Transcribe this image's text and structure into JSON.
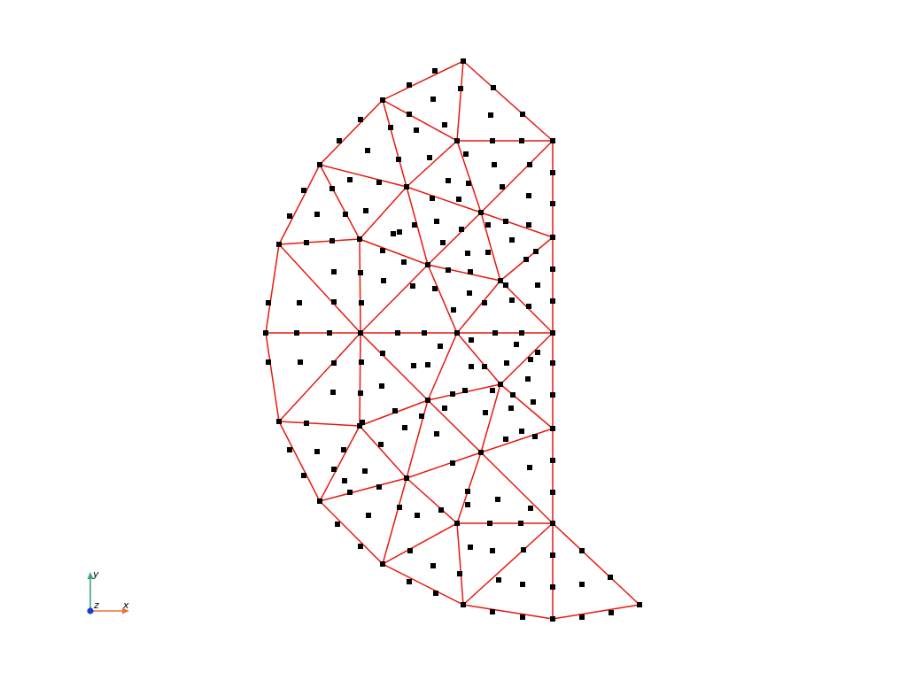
{
  "mesh": {
    "edge_color": "#e8190f",
    "node_color": "#000000",
    "vertices": [
      [
        523,
        69
      ],
      [
        432,
        113
      ],
      [
        361,
        186
      ],
      [
        315,
        276
      ],
      [
        300,
        376
      ],
      [
        315,
        476
      ],
      [
        361,
        566
      ],
      [
        432,
        637
      ],
      [
        523,
        683
      ],
      [
        624,
        699
      ],
      [
        722,
        683
      ],
      [
        516,
        159
      ],
      [
        624,
        159
      ],
      [
        459,
        211
      ],
      [
        543,
        240
      ],
      [
        406,
        270
      ],
      [
        624,
        268
      ],
      [
        483,
        299
      ],
      [
        565,
        317
      ],
      [
        407,
        376
      ],
      [
        516,
        376
      ],
      [
        624,
        376
      ],
      [
        483,
        452
      ],
      [
        565,
        434
      ],
      [
        406,
        481
      ],
      [
        624,
        484
      ],
      [
        543,
        511
      ],
      [
        459,
        540
      ],
      [
        516,
        591
      ],
      [
        624,
        591
      ]
    ],
    "edges": [
      [
        0,
        1
      ],
      [
        1,
        2
      ],
      [
        2,
        3
      ],
      [
        3,
        4
      ],
      [
        4,
        5
      ],
      [
        5,
        6
      ],
      [
        6,
        7
      ],
      [
        7,
        8
      ],
      [
        8,
        9
      ],
      [
        9,
        10
      ],
      [
        0,
        12
      ],
      [
        12,
        16
      ],
      [
        16,
        21
      ],
      [
        21,
        25
      ],
      [
        25,
        29
      ],
      [
        29,
        9
      ],
      [
        29,
        10
      ],
      [
        0,
        11
      ],
      [
        1,
        11
      ],
      [
        11,
        12
      ],
      [
        1,
        13
      ],
      [
        11,
        13
      ],
      [
        11,
        14
      ],
      [
        12,
        14
      ],
      [
        2,
        13
      ],
      [
        2,
        15
      ],
      [
        13,
        15
      ],
      [
        13,
        14
      ],
      [
        13,
        17
      ],
      [
        14,
        16
      ],
      [
        14,
        17
      ],
      [
        14,
        18
      ],
      [
        16,
        18
      ],
      [
        3,
        15
      ],
      [
        15,
        17
      ],
      [
        15,
        19
      ],
      [
        17,
        18
      ],
      [
        17,
        19
      ],
      [
        17,
        20
      ],
      [
        18,
        20
      ],
      [
        18,
        21
      ],
      [
        3,
        19
      ],
      [
        4,
        19
      ],
      [
        19,
        20
      ],
      [
        20,
        21
      ],
      [
        5,
        19
      ],
      [
        19,
        22
      ],
      [
        19,
        24
      ],
      [
        5,
        24
      ],
      [
        20,
        22
      ],
      [
        20,
        23
      ],
      [
        21,
        23
      ],
      [
        22,
        23
      ],
      [
        22,
        24
      ],
      [
        22,
        26
      ],
      [
        23,
        26
      ],
      [
        23,
        25
      ],
      [
        25,
        26
      ],
      [
        24,
        27
      ],
      [
        22,
        27
      ],
      [
        6,
        24
      ],
      [
        6,
        27
      ],
      [
        26,
        27
      ],
      [
        26,
        28
      ],
      [
        26,
        29
      ],
      [
        27,
        28
      ],
      [
        7,
        27
      ],
      [
        7,
        28
      ],
      [
        28,
        29
      ],
      [
        8,
        28
      ],
      [
        8,
        29
      ]
    ],
    "extra_nodes": [
      [
        491,
        80
      ],
      [
        462,
        96
      ],
      [
        407,
        135
      ],
      [
        383,
        159
      ],
      [
        557,
        99
      ],
      [
        590,
        129
      ],
      [
        489,
        112
      ],
      [
        554,
        130
      ],
      [
        520,
        100
      ],
      [
        441,
        144
      ],
      [
        462,
        129
      ],
      [
        502,
        141
      ],
      [
        470,
        147
      ],
      [
        415,
        170
      ],
      [
        485,
        178
      ],
      [
        526,
        174
      ],
      [
        556,
        159
      ],
      [
        589,
        159
      ],
      [
        558,
        186
      ],
      [
        598,
        186
      ],
      [
        343,
        215
      ],
      [
        327,
        244
      ],
      [
        375,
        213
      ],
      [
        395,
        203
      ],
      [
        428,
        206
      ],
      [
        390,
        242
      ],
      [
        413,
        238
      ],
      [
        450,
        180
      ],
      [
        451,
        262
      ],
      [
        468,
        254
      ],
      [
        493,
        250
      ],
      [
        506,
        204
      ],
      [
        488,
        224
      ],
      [
        518,
        225
      ],
      [
        529,
        207
      ],
      [
        567,
        211
      ],
      [
        624,
        195
      ],
      [
        624,
        230
      ],
      [
        597,
        221
      ],
      [
        571,
        250
      ],
      [
        597,
        254
      ],
      [
        594,
        293
      ],
      [
        605,
        284
      ],
      [
        624,
        304
      ],
      [
        624,
        340
      ],
      [
        578,
        271
      ],
      [
        551,
        254
      ],
      [
        551,
        285
      ],
      [
        528,
        286
      ],
      [
        521,
        259
      ],
      [
        500,
        274
      ],
      [
        346,
        274
      ],
      [
        375,
        272
      ],
      [
        358,
        242
      ],
      [
        407,
        308
      ],
      [
        408,
        342
      ],
      [
        377,
        307
      ],
      [
        432,
        283
      ],
      [
        444,
        264
      ],
      [
        433,
        317
      ],
      [
        456,
        296
      ],
      [
        466,
        323
      ],
      [
        491,
        326
      ],
      [
        506,
        305
      ],
      [
        512,
        350
      ],
      [
        531,
        307
      ],
      [
        530,
        331
      ],
      [
        547,
        342
      ],
      [
        571,
        322
      ],
      [
        578,
        339
      ],
      [
        597,
        346
      ],
      [
        607,
        322
      ],
      [
        303,
        342
      ],
      [
        338,
        342
      ],
      [
        335,
        376
      ],
      [
        372,
        376
      ],
      [
        377,
        341
      ],
      [
        449,
        376
      ],
      [
        479,
        376
      ],
      [
        559,
        376
      ],
      [
        589,
        376
      ],
      [
        377,
        410
      ],
      [
        339,
        409
      ],
      [
        303,
        409
      ],
      [
        376,
        443
      ],
      [
        408,
        409
      ],
      [
        407,
        444
      ],
      [
        432,
        399
      ],
      [
        431,
        436
      ],
      [
        467,
        413
      ],
      [
        446,
        464
      ],
      [
        483,
        412
      ],
      [
        497,
        391
      ],
      [
        532,
        384
      ],
      [
        532,
        414
      ],
      [
        547,
        414
      ],
      [
        572,
        410
      ],
      [
        599,
        406
      ],
      [
        583,
        389
      ],
      [
        607,
        398
      ],
      [
        624,
        410
      ],
      [
        624,
        446
      ],
      [
        596,
        428
      ],
      [
        511,
        445
      ],
      [
        525,
        441
      ],
      [
        556,
        441
      ],
      [
        548,
        466
      ],
      [
        579,
        446
      ],
      [
        577,
        461
      ],
      [
        589,
        487
      ],
      [
        602,
        454
      ],
      [
        604,
        493
      ],
      [
        624,
        520
      ],
      [
        624,
        556
      ],
      [
        598,
        528
      ],
      [
        571,
        496
      ],
      [
        502,
        461
      ],
      [
        511,
        523
      ],
      [
        493,
        490
      ],
      [
        476,
        470
      ],
      [
        457,
        483
      ],
      [
        430,
        502
      ],
      [
        409,
        477
      ],
      [
        388,
        508
      ],
      [
        377,
        530
      ],
      [
        346,
        478
      ],
      [
        358,
        510
      ],
      [
        389,
        543
      ],
      [
        412,
        532
      ],
      [
        428,
        550
      ],
      [
        395,
        556
      ],
      [
        343,
        537
      ],
      [
        327,
        508
      ],
      [
        381,
        592
      ],
      [
        407,
        617
      ],
      [
        416,
        582
      ],
      [
        463,
        622
      ],
      [
        489,
        639
      ],
      [
        451,
        573
      ],
      [
        471,
        582
      ],
      [
        498,
        576
      ],
      [
        528,
        555
      ],
      [
        528,
        570
      ],
      [
        562,
        564
      ],
      [
        599,
        574
      ],
      [
        553,
        591
      ],
      [
        588,
        591
      ],
      [
        531,
        618
      ],
      [
        519,
        648
      ],
      [
        556,
        622
      ],
      [
        591,
        621
      ],
      [
        563,
        655
      ],
      [
        590,
        660
      ],
      [
        624,
        627
      ],
      [
        624,
        663
      ],
      [
        657,
        622
      ],
      [
        689,
        652
      ],
      [
        657,
        660
      ],
      [
        492,
        670
      ],
      [
        462,
        657
      ],
      [
        556,
        691
      ],
      [
        590,
        697
      ],
      [
        657,
        697
      ],
      [
        690,
        692
      ]
    ]
  },
  "axes": {
    "x_label": "x",
    "y_label": "y",
    "z_label": "z",
    "x_color": "#e8743b",
    "y_color": "#3aa876",
    "z_color": "#1f3bd6"
  }
}
